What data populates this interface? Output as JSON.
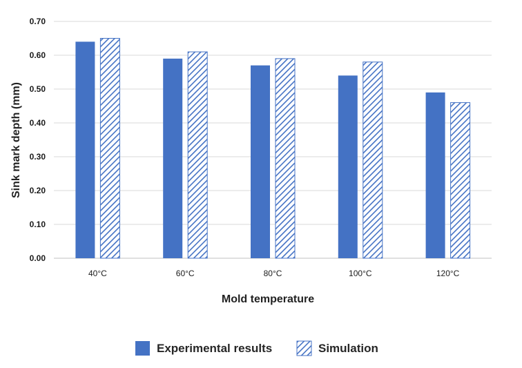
{
  "chart_data": {
    "type": "bar",
    "title": "",
    "xlabel": "Mold temperature",
    "ylabel": "Sink mark depth (mm)",
    "categories": [
      "40°C",
      "60°C",
      "80°C",
      "100°C",
      "120°C"
    ],
    "series": [
      {
        "name": "Experimental results",
        "values": [
          0.64,
          0.59,
          0.57,
          0.54,
          0.49
        ],
        "color": "#4472C4",
        "fill": "solid"
      },
      {
        "name": "Simulation",
        "values": [
          0.65,
          0.61,
          0.59,
          0.58,
          0.46
        ],
        "color": "#4472C4",
        "fill": "diagonal-hatch"
      }
    ],
    "ylim": [
      0,
      0.7
    ],
    "yticks": [
      "0.00",
      "0.10",
      "0.20",
      "0.30",
      "0.40",
      "0.50",
      "0.60",
      "0.70"
    ],
    "grid": true,
    "legend_position": "bottom"
  }
}
